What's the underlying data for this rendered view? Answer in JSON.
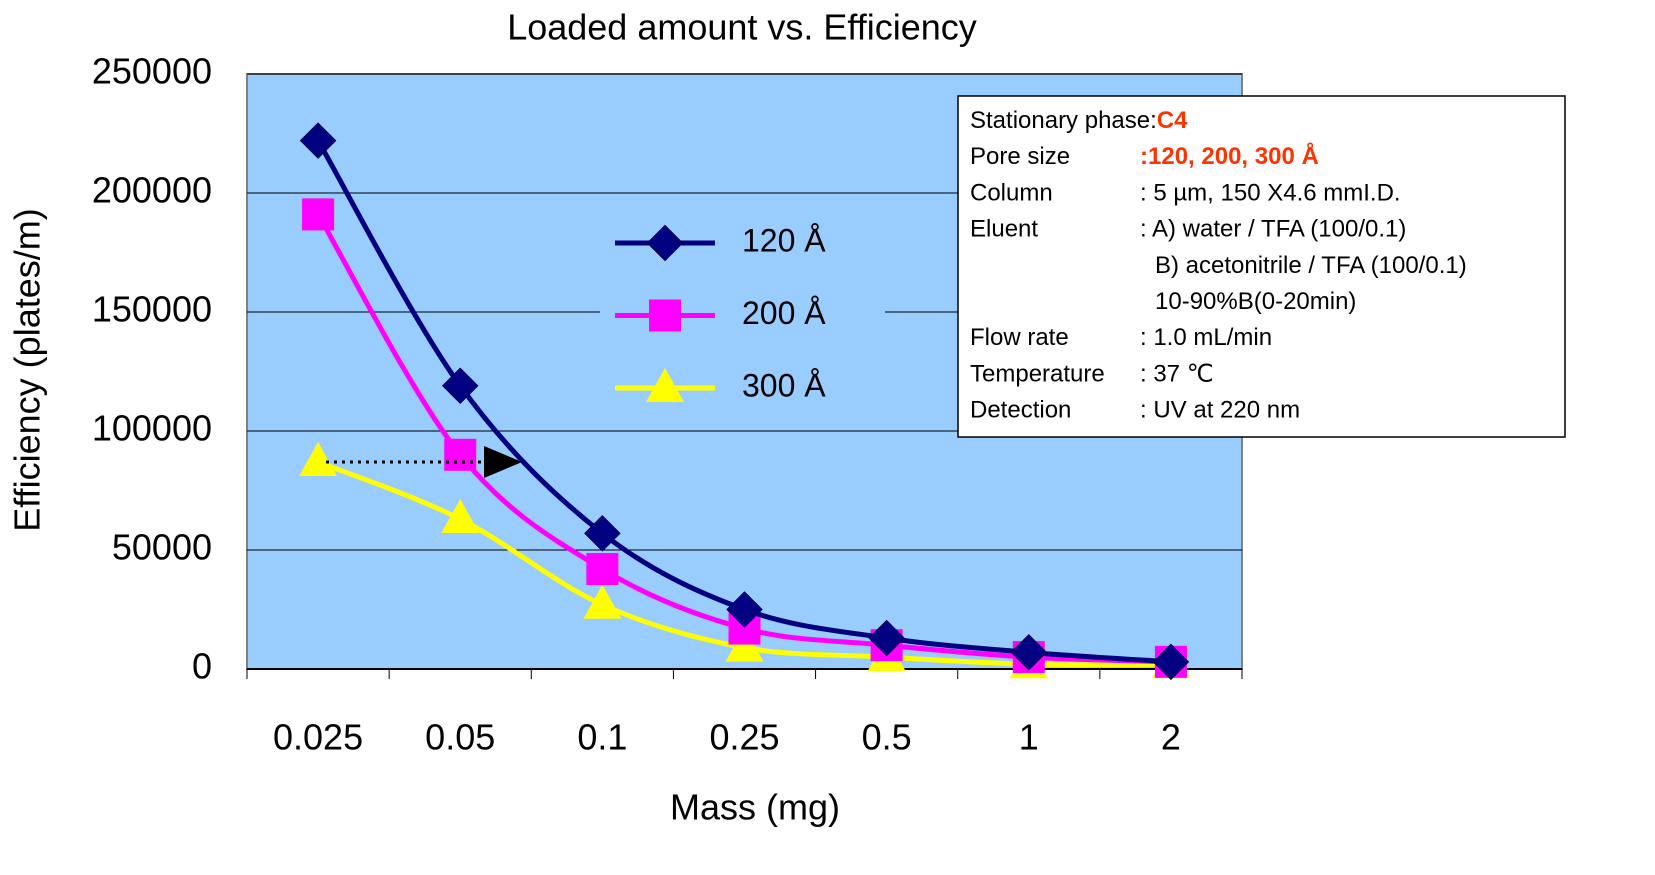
{
  "chart_data": {
    "type": "line",
    "title": "Loaded amount  vs. Efficiency",
    "x_label": "Mass (mg)",
    "y_label": "Efficiency (plates/m)",
    "categories": [
      "0.025",
      "0.05",
      "0.1",
      "0.25",
      "0.5",
      "1",
      "2"
    ],
    "series": [
      {
        "name": "120 Å",
        "color": "#000080",
        "marker": "diamond",
        "values": [
          222000,
          119000,
          57000,
          25000,
          13000,
          7000,
          3000
        ]
      },
      {
        "name": "200 Å",
        "color": "#ff00ff",
        "marker": "square",
        "values": [
          191000,
          90000,
          42000,
          17000,
          10000,
          5000,
          3000
        ]
      },
      {
        "name": "300 Å",
        "color": "#ffff00",
        "marker": "triangle",
        "values": [
          87000,
          63000,
          27000,
          9000,
          5000,
          2000,
          2000
        ]
      }
    ],
    "ylim": [
      0,
      250000
    ],
    "yticks": [
      0,
      50000,
      100000,
      150000,
      200000,
      250000
    ],
    "grid": true,
    "plot_color": "#99ccff",
    "annotation": {
      "highlight_color": "#ff3300",
      "rows": [
        {
          "label": "Stationary phase:",
          "value": "C4",
          "highlight": true
        },
        {
          "label": "Pore size",
          "value": ":120, 200, 300 Å",
          "highlight": true
        },
        {
          "label": "Column",
          "value": ": 5 µm, 150 X4.6 mmI.D."
        },
        {
          "label": "Eluent",
          "value": ": A) water / TFA (100/0.1)"
        },
        {
          "value": "B) acetonitrile / TFA (100/0.1)"
        },
        {
          "value": "10-90%B(0-20min)"
        },
        {
          "label": "Flow rate",
          "value": ": 1.0 mL/min"
        },
        {
          "label": "Temperature",
          "value": ": 37 ℃"
        },
        {
          "label": "Detection",
          "value": ": UV at 220 nm"
        }
      ]
    }
  }
}
